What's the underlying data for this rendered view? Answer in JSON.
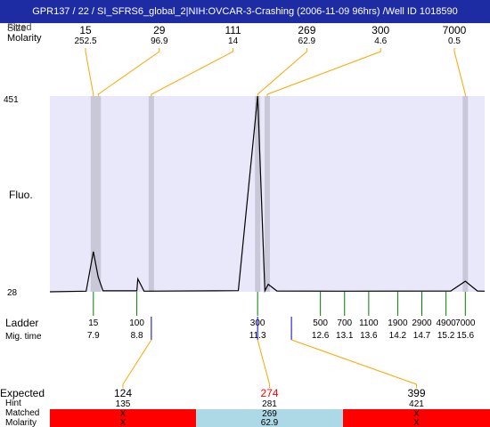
{
  "title": "GPR137 / 22 / SI_SFRS6_global_2|NIH:OVCAR-3-Crashing (2006-11-09 96hrs) /Well ID 1018590",
  "top_labels": {
    "size": "Size",
    "fitted": "Fitted",
    "molarity": "Molarity"
  },
  "y_axis": {
    "label": "Fluo.",
    "max": "451",
    "min": "28"
  },
  "bottom_labels": {
    "ladder": "Ladder",
    "mig_time": "Mig. time"
  },
  "expected_labels": {
    "expected": "Expected",
    "hint": "Hint",
    "matched": "Matched",
    "molarity": "Molarity"
  },
  "colors": {
    "title_bg": "#1e2ca4",
    "plot_bg": "#e8e8fa",
    "band": "#c8c8d8",
    "leader": "#ffa500",
    "ladder_tick": "#008000",
    "marker_tick": "#0000cd",
    "bad": "#ff0000",
    "good": "#add8e6",
    "highlight": "#ff0000"
  },
  "chart_data": {
    "type": "line",
    "y_range": [
      28,
      451
    ],
    "peaks": [
      {
        "size": "15",
        "molarity": "252.5",
        "mig_time": 7.9
      },
      {
        "size": "29",
        "molarity": "96.9",
        "mig_time": 8.0
      },
      {
        "size": "111",
        "molarity": "14",
        "mig_time": 9.1
      },
      {
        "size": "269",
        "molarity": "62.9",
        "mig_time": 11.3
      },
      {
        "size": "300",
        "molarity": "4.6",
        "mig_time": 11.5
      },
      {
        "size": "7000",
        "molarity": "0.5",
        "mig_time": 15.6
      }
    ],
    "ladder": [
      {
        "size": "15",
        "mig_time": "7.9"
      },
      {
        "size": "100",
        "mig_time": "8.8"
      },
      {
        "size": "300",
        "mig_time": "11.3"
      },
      {
        "size": "500",
        "mig_time": "12.6"
      },
      {
        "size": "700",
        "mig_time": "13.1"
      },
      {
        "size": "1100",
        "mig_time": "13.6"
      },
      {
        "size": "1900",
        "mig_time": "14.2"
      },
      {
        "size": "2900",
        "mig_time": "14.7"
      },
      {
        "size": "4900",
        "mig_time": "15.2"
      },
      {
        "size": "7000",
        "mig_time": "15.6"
      }
    ],
    "markers": [
      9.1,
      11.3,
      12.0
    ],
    "expected": [
      {
        "expected": "124",
        "hint": "135",
        "matched": "X",
        "molarity": "X",
        "status": "unmatched",
        "marker_time": 9.1
      },
      {
        "expected": "274",
        "hint": "281",
        "matched": "269",
        "molarity": "62.9",
        "status": "matched",
        "marker_time": 11.3
      },
      {
        "expected": "399",
        "hint": "421",
        "matched": "X",
        "molarity": "X",
        "status": "unmatched",
        "marker_time": 12.0
      }
    ],
    "trace": [
      [
        7.0,
        0
      ],
      [
        7.75,
        0.003
      ],
      [
        7.9,
        0.205
      ],
      [
        8.0,
        0.076
      ],
      [
        8.1,
        0.005
      ],
      [
        8.8,
        0.005
      ],
      [
        8.82,
        0.066
      ],
      [
        8.95,
        0.003
      ],
      [
        10.4,
        0.005
      ],
      [
        10.9,
        0.006
      ],
      [
        11.3,
        1.0
      ],
      [
        11.45,
        0.005
      ],
      [
        11.52,
        0.038
      ],
      [
        11.7,
        0.004
      ],
      [
        13.0,
        0.003
      ],
      [
        15.3,
        0.004
      ],
      [
        15.6,
        0.054
      ],
      [
        15.85,
        0.004
      ],
      [
        16.0,
        0.003
      ]
    ]
  }
}
